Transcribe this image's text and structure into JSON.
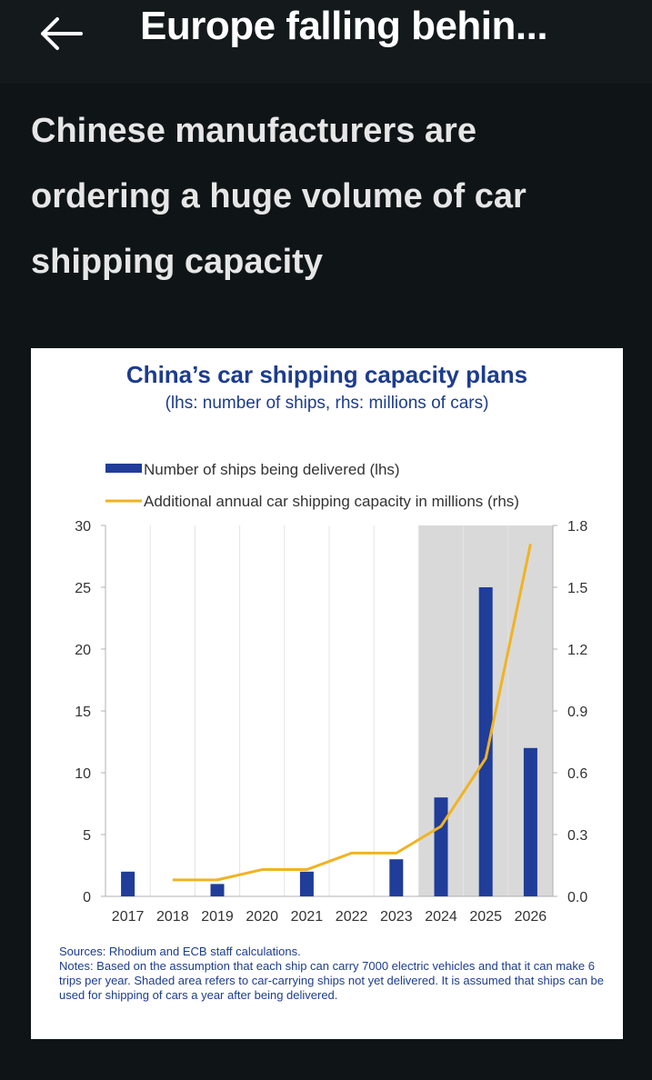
{
  "header": {
    "back_icon": "arrow-left-icon",
    "title": "Europe falling behin..."
  },
  "headline": "Chinese manufacturers are ordering a huge volume of car shipping capacity",
  "chart_data": {
    "type": "bar",
    "title": "China’s car shipping capacity plans",
    "subtitle": "(lhs: number of ships, rhs: millions of cars)",
    "categories": [
      "2017",
      "2018",
      "2019",
      "2020",
      "2021",
      "2022",
      "2023",
      "2024",
      "2025",
      "2026"
    ],
    "series": [
      {
        "name": "Number of ships being delivered (lhs)",
        "type": "bar",
        "axis": "left",
        "color": "#1f3d99",
        "values": [
          2,
          0,
          1,
          0,
          2,
          0,
          3,
          8,
          25,
          12
        ]
      },
      {
        "name": "Additional annual car shipping capacity in millions (rhs)",
        "type": "line",
        "axis": "right",
        "color": "#f0b323",
        "values": [
          null,
          0.08,
          0.08,
          0.13,
          0.13,
          0.21,
          0.21,
          0.34,
          0.67,
          1.71
        ]
      }
    ],
    "ylim_left": [
      0,
      30
    ],
    "yticks_left": [
      "0",
      "5",
      "10",
      "15",
      "20",
      "25",
      "30"
    ],
    "ylim_right": [
      0,
      1.8
    ],
    "yticks_right": [
      "0.0",
      "0.3",
      "0.6",
      "0.9",
      "1.2",
      "1.5",
      "1.8"
    ],
    "shaded_categories": [
      "2024",
      "2025",
      "2026"
    ],
    "shade_color": "#d9d9d9",
    "grid": true,
    "legend_position": "top-left"
  },
  "notes": {
    "sources": "Sources: Rhodium and ECB staff calculations.",
    "notes": "Notes: Based on the assumption that each ship can carry 7000 electric vehicles and that it can make 6 trips per year. Shaded area refers to car-carrying ships not yet delivered. It is assumed that ships can be used for shipping of cars a year after being delivered."
  }
}
